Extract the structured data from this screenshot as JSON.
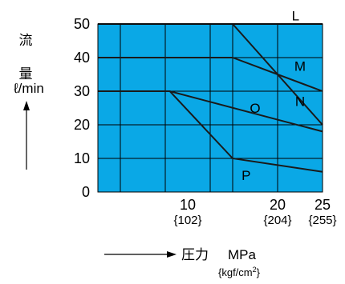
{
  "chart_data": {
    "type": "line",
    "background_color": "#0aa8e6",
    "grid": true,
    "grid_color": "#000000",
    "line_color": "#1a1a1a",
    "xlim": [
      0,
      25
    ],
    "ylim": [
      0,
      50
    ],
    "y_ticks": [
      0,
      10,
      20,
      30,
      40,
      50
    ],
    "x_ticks": [
      {
        "value": 10,
        "label": "10",
        "sublabel": "{102}"
      },
      {
        "value": 20,
        "label": "20",
        "sublabel": "{204}"
      },
      {
        "value": 25,
        "label": "25",
        "sublabel": "{255}"
      }
    ],
    "vertical_grid_x": [
      2.5,
      7.5,
      12.5,
      15,
      20
    ],
    "ylabel_chars": [
      "流",
      "量"
    ],
    "ylabel_unit": "ℓ/min",
    "xlabel": "圧力",
    "xlabel_unit": "MPa",
    "xlabel_subunit_base": "{kgf/cm",
    "xlabel_subunit_sup": "2",
    "xlabel_subunit_end": "}",
    "series": [
      {
        "name": "L",
        "points": [
          [
            0,
            50
          ],
          [
            25,
            50
          ]
        ]
      },
      {
        "name": "M",
        "points": [
          [
            0,
            40
          ],
          [
            15,
            40
          ],
          [
            25,
            30
          ]
        ]
      },
      {
        "name": "N",
        "points": [
          [
            15,
            50
          ],
          [
            25,
            20
          ]
        ]
      },
      {
        "name": "O",
        "points": [
          [
            0,
            30
          ],
          [
            8,
            30
          ],
          [
            25,
            18
          ]
        ]
      },
      {
        "name": "P",
        "points": [
          [
            8,
            30
          ],
          [
            15,
            10
          ],
          [
            25,
            6
          ]
        ]
      }
    ],
    "series_labels": [
      {
        "name": "L",
        "x": 22,
        "y": 52.5
      },
      {
        "name": "M",
        "x": 22.5,
        "y": 37.5
      },
      {
        "name": "N",
        "x": 22.5,
        "y": 27
      },
      {
        "name": "O",
        "x": 17.5,
        "y": 25
      },
      {
        "name": "P",
        "x": 16.5,
        "y": 5
      }
    ]
  }
}
